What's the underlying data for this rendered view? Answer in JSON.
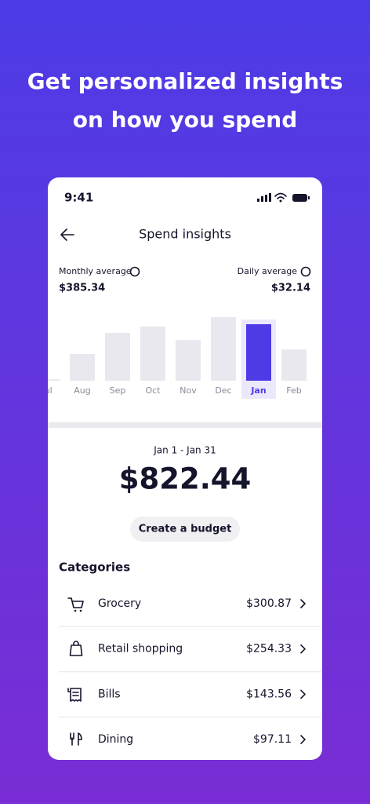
{
  "header": {
    "title_lines": [
      "Get personalized insights",
      "on how you spend"
    ]
  },
  "status_bar": {
    "time": "9:41"
  },
  "nav": {
    "title": "Spend insights"
  },
  "summary": {
    "monthly_label": "Monthly average",
    "monthly_value": "$385.34",
    "daily_label": "Daily average",
    "daily_value": "$32.14"
  },
  "chart_data": {
    "type": "bar",
    "categories": [
      "Jul",
      "Aug",
      "Sep",
      "Oct",
      "Nov",
      "Dec",
      "Jan",
      "Feb"
    ],
    "values": [
      2,
      34,
      61,
      69,
      52,
      81,
      72,
      40
    ],
    "ylim": [
      0,
      85
    ],
    "color": "#e9e8ef",
    "selected_index": 6,
    "selected_color": "#4f3be6"
  },
  "period": {
    "range": "Jan 1 - Jan 31",
    "total": "$822.44"
  },
  "budget_button": "Create a budget",
  "categories": {
    "title": "Categories",
    "items": [
      {
        "name": "Grocery",
        "amount": "$300.87"
      },
      {
        "name": "Retail shopping",
        "amount": "$254.33"
      },
      {
        "name": "Bills",
        "amount": "$143.56"
      },
      {
        "name": "Dining",
        "amount": "$97.11"
      }
    ]
  }
}
